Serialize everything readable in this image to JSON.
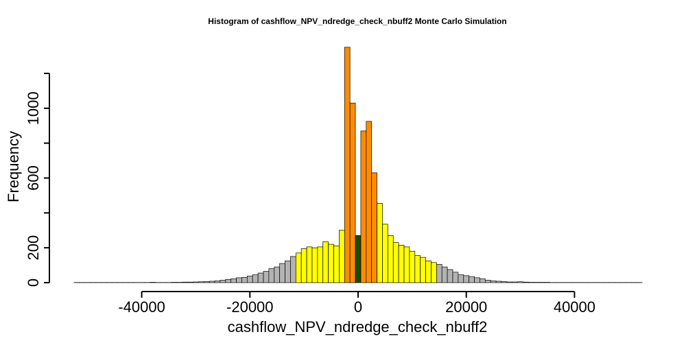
{
  "chart_data": {
    "type": "bar",
    "title": "Histogram of  cashflow_NPV_ndredge_check_nbuff2  Monte Carlo Simulation",
    "xlabel": "cashflow_NPV_ndredge_check_nbuff2",
    "ylabel": "Frequency",
    "xlim": [
      -52500,
      52500
    ],
    "ylim": [
      0,
      1200
    ],
    "bin_width": 1000,
    "x_ticks": [
      -40000,
      -20000,
      0,
      20000,
      40000
    ],
    "x_tick_labels": [
      "-40000",
      "-20000",
      "0",
      "20000",
      "40000"
    ],
    "y_ticks": [
      0,
      200,
      400,
      600,
      800,
      1000,
      1200
    ],
    "y_tick_labels": [
      "0",
      "200",
      "",
      "600",
      "",
      "1000",
      ""
    ],
    "colors": {
      "tail": "#b3b3b3",
      "mid": "#ffff00",
      "core": "#ff8c00",
      "median": "#1a4d00",
      "stroke": "#000000"
    },
    "bin_starts": [
      -52500,
      -51500,
      -50500,
      -49500,
      -48500,
      -47500,
      -46500,
      -45500,
      -44500,
      -43500,
      -42500,
      -41500,
      -40500,
      -39500,
      -38500,
      -37500,
      -36500,
      -35500,
      -34500,
      -33500,
      -32500,
      -31500,
      -30500,
      -29500,
      -28500,
      -27500,
      -26500,
      -25500,
      -24500,
      -23500,
      -22500,
      -21500,
      -20500,
      -19500,
      -18500,
      -17500,
      -16500,
      -15500,
      -14500,
      -13500,
      -12500,
      -11500,
      -10500,
      -9500,
      -8500,
      -7500,
      -6500,
      -5500,
      -4500,
      -3500,
      -2500,
      -1500,
      -500,
      500,
      1500,
      2500,
      3500,
      4500,
      5500,
      6500,
      7500,
      8500,
      9500,
      10500,
      11500,
      12500,
      13500,
      14500,
      15500,
      16500,
      17500,
      18500,
      19500,
      20500,
      21500,
      22500,
      23500,
      24500,
      25500,
      26500,
      27500,
      28500,
      29500,
      30500,
      31500,
      32500,
      33500,
      34500,
      35500,
      36500,
      37500,
      38500,
      39500,
      40500,
      41500,
      42500,
      43500,
      44500,
      45500,
      46500,
      47500,
      48500,
      49500,
      50500,
      51500
    ],
    "frequencies": [
      1,
      1,
      1,
      1,
      1,
      1,
      1,
      1,
      1,
      1,
      1,
      1,
      1,
      1,
      2,
      1,
      1,
      1,
      2,
      2,
      3,
      3,
      4,
      5,
      6,
      8,
      10,
      14,
      18,
      22,
      28,
      30,
      38,
      45,
      55,
      65,
      80,
      90,
      110,
      125,
      150,
      170,
      195,
      205,
      200,
      205,
      235,
      220,
      210,
      300,
      1350,
      1030,
      270,
      870,
      925,
      630,
      455,
      335,
      270,
      230,
      215,
      205,
      180,
      155,
      145,
      125,
      115,
      105,
      90,
      75,
      60,
      45,
      40,
      35,
      28,
      22,
      14,
      10,
      8,
      6,
      4,
      4,
      5,
      3,
      2,
      2,
      2,
      2,
      1,
      1,
      1,
      1,
      1,
      1,
      1,
      1,
      1,
      1,
      1,
      1,
      1,
      1,
      1,
      1,
      1
    ],
    "bin_colors": [
      "tail",
      "tail",
      "tail",
      "tail",
      "tail",
      "tail",
      "tail",
      "tail",
      "tail",
      "tail",
      "tail",
      "tail",
      "tail",
      "tail",
      "tail",
      "tail",
      "tail",
      "tail",
      "tail",
      "tail",
      "tail",
      "tail",
      "tail",
      "tail",
      "tail",
      "tail",
      "tail",
      "tail",
      "tail",
      "tail",
      "tail",
      "tail",
      "tail",
      "tail",
      "tail",
      "tail",
      "tail",
      "tail",
      "tail",
      "tail",
      "tail",
      "mid",
      "mid",
      "mid",
      "mid",
      "mid",
      "mid",
      "mid",
      "mid",
      "mid",
      "core",
      "core",
      "median",
      "core",
      "core",
      "core",
      "mid",
      "mid",
      "mid",
      "mid",
      "mid",
      "mid",
      "mid",
      "mid",
      "mid",
      "mid",
      "mid",
      "tail",
      "tail",
      "tail",
      "tail",
      "tail",
      "tail",
      "tail",
      "tail",
      "tail",
      "tail",
      "tail",
      "tail",
      "tail",
      "tail",
      "tail",
      "tail",
      "tail",
      "tail",
      "tail",
      "tail",
      "tail",
      "tail",
      "tail",
      "tail",
      "tail",
      "tail",
      "tail",
      "tail",
      "tail",
      "tail",
      "tail",
      "tail",
      "tail",
      "tail",
      "tail",
      "tail",
      "tail",
      "tail"
    ]
  }
}
